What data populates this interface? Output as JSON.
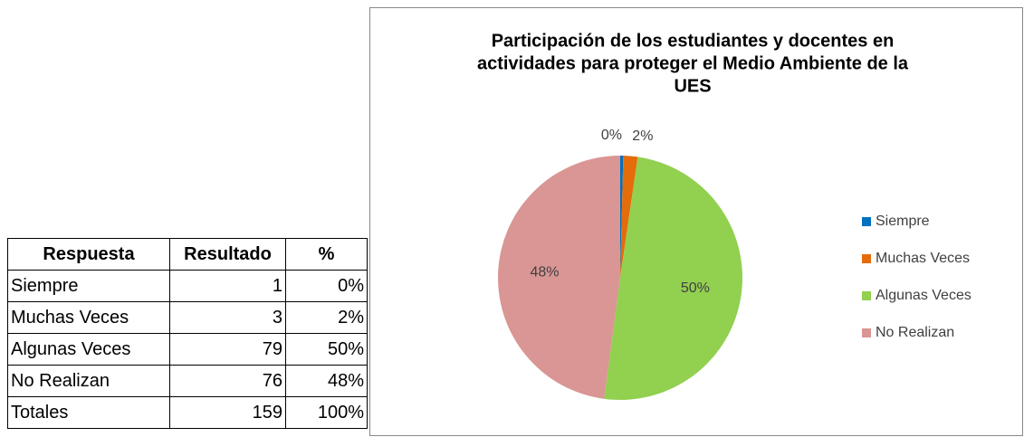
{
  "table": {
    "header": [
      "Respuesta",
      "Resultado",
      "%"
    ],
    "rows": [
      [
        "Siempre",
        "1",
        "0%"
      ],
      [
        "Muchas Veces",
        "3",
        "2%"
      ],
      [
        "Algunas Veces",
        "79",
        "50%"
      ],
      [
        "No Realizan",
        "76",
        "48%"
      ],
      [
        "Totales",
        "159",
        "100%"
      ]
    ]
  },
  "chart_data": {
    "type": "pie",
    "title": [
      "Participación de los estudiantes y docentes en",
      "actividades para proteger el Medio Ambiente de la",
      "UES"
    ],
    "categories": [
      "Siempre",
      "Muchas Veces",
      "Algunas Veces",
      "No Realizan"
    ],
    "values": [
      0.4,
      1.9,
      49.8,
      47.9
    ],
    "value_labels": [
      "0%",
      "2%",
      "50%",
      "48%"
    ],
    "colors": [
      "#0070c0",
      "#e46c0a",
      "#92d050",
      "#d99694"
    ],
    "legend": "right"
  }
}
